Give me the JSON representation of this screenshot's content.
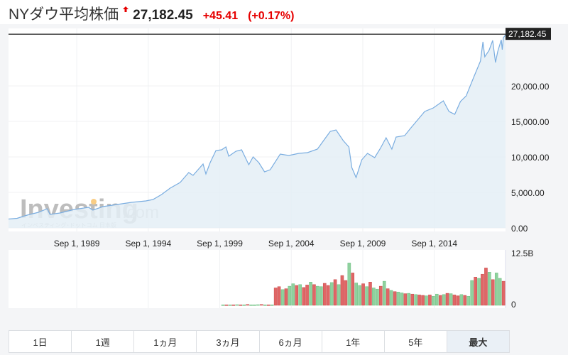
{
  "header": {
    "title": "NYダウ平均株価",
    "price": "27,182.45",
    "change": "+45.41",
    "change_pct": "(+0.17%)",
    "trend_icon": "up-arrow-icon",
    "up_color": "#e60000"
  },
  "watermark": {
    "brand": "Investing",
    "suffix": ".com",
    "sub": "インベスティング･ドットコム 日本版"
  },
  "chart_data": {
    "type": "area",
    "title": "NYダウ平均株価",
    "current_label": "27,182.45",
    "current_value": 27182.45,
    "price_axis": {
      "min": 0,
      "max": 28100,
      "ticks": [
        0,
        5000,
        10000,
        15000,
        20000
      ],
      "tick_labels": [
        "0.00",
        "5,000.00",
        "10,000.00",
        "15,000.00",
        "20,000.00"
      ]
    },
    "x_axis": {
      "min": 1984.9,
      "max": 2019.65,
      "ticks": [
        1989.67,
        1994.67,
        1999.67,
        2004.67,
        2009.67,
        2014.67
      ],
      "tick_labels": [
        "Sep 1, 1989",
        "Sep 1, 1994",
        "Sep 1, 1999",
        "Sep 1, 2004",
        "Sep 1, 2009",
        "Sep 1, 2014"
      ]
    },
    "series": [
      {
        "name": "Price",
        "color": "#7aade0",
        "fill": "#e4eef6",
        "x": [
          1984.9,
          1985.5,
          1986.2,
          1987.0,
          1987.6,
          1987.8,
          1988.5,
          1989.5,
          1990.5,
          1990.8,
          1991.5,
          1992.5,
          1993.5,
          1994.5,
          1995.0,
          1995.6,
          1996.2,
          1996.9,
          1997.5,
          1997.8,
          1998.5,
          1998.7,
          1999.0,
          1999.4,
          1999.8,
          2000.1,
          2000.3,
          2000.8,
          2001.2,
          2001.7,
          2002.0,
          2002.4,
          2002.8,
          2003.2,
          2003.9,
          2004.5,
          2005.2,
          2005.8,
          2006.5,
          2007.0,
          2007.4,
          2007.8,
          2008.3,
          2008.7,
          2008.9,
          2009.2,
          2009.6,
          2010.0,
          2010.5,
          2010.9,
          2011.3,
          2011.7,
          2012.0,
          2012.6,
          2013.0,
          2013.5,
          2014.0,
          2014.6,
          2015.3,
          2015.7,
          2016.1,
          2016.5,
          2016.9,
          2017.4,
          2017.9,
          2018.07,
          2018.2,
          2018.5,
          2018.75,
          2018.95,
          2019.1,
          2019.35,
          2019.42,
          2019.5,
          2019.65
        ],
        "y": [
          1250,
          1350,
          1800,
          2200,
          2700,
          1900,
          2100,
          2600,
          2900,
          2500,
          3000,
          3300,
          3600,
          3800,
          4000,
          4700,
          5600,
          6400,
          7800,
          7400,
          9000,
          7600,
          9200,
          10900,
          11000,
          11400,
          10100,
          10800,
          11000,
          8900,
          10000,
          9200,
          7900,
          8200,
          10400,
          10200,
          10500,
          10600,
          11100,
          12500,
          13600,
          13800,
          12300,
          11400,
          8500,
          7100,
          9600,
          10500,
          9900,
          11200,
          12700,
          11100,
          12800,
          13000,
          14000,
          15200,
          16400,
          16900,
          17900,
          16400,
          16000,
          17800,
          18600,
          21100,
          23500,
          26200,
          24100,
          25000,
          26400,
          23300,
          24800,
          26500,
          25100,
          26800,
          27182
        ]
      }
    ],
    "volume": {
      "axis_labels": [
        "12.5B",
        "0"
      ],
      "max": 12.5,
      "up_color": "#8fd19e",
      "down_color": "#e06666",
      "values": [
        0.1,
        0.1,
        0.1,
        0.1,
        0.15,
        0.1,
        0.1,
        0.2,
        0.1,
        0.1,
        0.15,
        0.2,
        0.1,
        0.1,
        0.1,
        4.2,
        4.5,
        3.8,
        4.0,
        4.6,
        5.2,
        4.8,
        5.0,
        4.3,
        4.9,
        5.6,
        5.0,
        4.6,
        4.5,
        5.3,
        4.8,
        5.5,
        6.2,
        5.0,
        7.2,
        6.0,
        10.2,
        7.8,
        5.4,
        4.8,
        5.2,
        4.5,
        5.6,
        4.2,
        3.9,
        4.6,
        5.8,
        4.0,
        3.6,
        3.3,
        3.2,
        3.0,
        2.8,
        2.9,
        2.7,
        2.6,
        2.5,
        2.4,
        2.3,
        2.5,
        2.2,
        2.7,
        2.4,
        2.6,
        2.9,
        2.8,
        2.5,
        2.3,
        2.6,
        2.4,
        2.2,
        6.0,
        6.8,
        6.5,
        7.5,
        9.0,
        8.0,
        6.2,
        7.8,
        6.5,
        5.8
      ],
      "directions": "grgrgrgrgggrgrgrrgrggrgrrgrggrrgrgrrgrggrgrggrgrgrggrgrgrrgrggrgrgrrgrggrgrrgrggr"
    }
  },
  "range_buttons": [
    {
      "label": "1日"
    },
    {
      "label": "1週"
    },
    {
      "label": "1ヵ月"
    },
    {
      "label": "3ヵ月"
    },
    {
      "label": "6ヵ月"
    },
    {
      "label": "1年"
    },
    {
      "label": "5年"
    },
    {
      "label": "最大",
      "active": true
    }
  ]
}
